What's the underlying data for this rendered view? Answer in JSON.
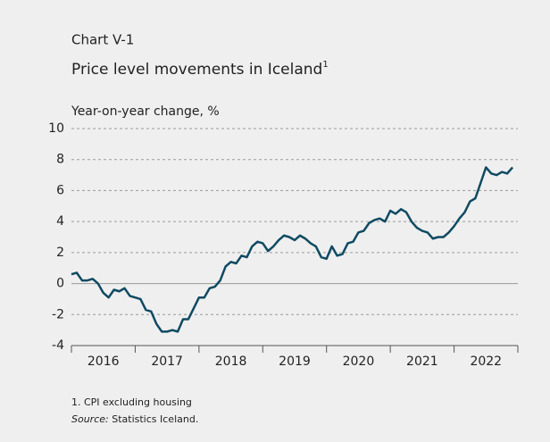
{
  "chart_data": {
    "type": "line",
    "chart_number": "Chart V-1",
    "title": "Price level movements in Iceland",
    "title_note": "1",
    "y_label": "Year-on-year change, %",
    "footnote": "1. CPI excluding housing",
    "source_label": "Source:",
    "source": "Statistics Iceland.",
    "x": [
      2016,
      2016.083,
      2016.167,
      2016.25,
      2016.333,
      2016.417,
      2016.5,
      2016.583,
      2016.667,
      2016.75,
      2016.833,
      2016.917,
      2017,
      2017.083,
      2017.167,
      2017.25,
      2017.333,
      2017.417,
      2017.5,
      2017.583,
      2017.667,
      2017.75,
      2017.833,
      2017.917,
      2018,
      2018.083,
      2018.167,
      2018.25,
      2018.333,
      2018.417,
      2018.5,
      2018.583,
      2018.667,
      2018.75,
      2018.833,
      2018.917,
      2019,
      2019.083,
      2019.167,
      2019.25,
      2019.333,
      2019.417,
      2019.5,
      2019.583,
      2019.667,
      2019.75,
      2019.833,
      2019.917,
      2020,
      2020.083,
      2020.167,
      2020.25,
      2020.333,
      2020.417,
      2020.5,
      2020.583,
      2020.667,
      2020.75,
      2020.833,
      2020.917,
      2021,
      2021.083,
      2021.167,
      2021.25,
      2021.333,
      2021.417,
      2021.5,
      2021.583,
      2021.667,
      2021.75,
      2021.833,
      2021.917,
      2022,
      2022.083,
      2022.167,
      2022.25,
      2022.333,
      2022.417,
      2022.5,
      2022.583,
      2022.667,
      2022.75,
      2022.833,
      2022.917
    ],
    "series": [
      {
        "color": "#0f4a62",
        "values": [
          0.6,
          0.7,
          0.2,
          0.2,
          0.3,
          0.0,
          -0.6,
          -0.9,
          -0.4,
          -0.5,
          -0.3,
          -0.8,
          -0.9,
          -1.0,
          -1.7,
          -1.8,
          -2.6,
          -3.1,
          -3.1,
          -3.0,
          -3.1,
          -2.3,
          -2.3,
          -1.6,
          -0.9,
          -0.9,
          -0.3,
          -0.2,
          0.2,
          1.1,
          1.4,
          1.3,
          1.8,
          1.7,
          2.4,
          2.7,
          2.6,
          2.1,
          2.4,
          2.8,
          3.1,
          3.0,
          2.8,
          3.1,
          2.9,
          2.6,
          2.4,
          1.7,
          1.6,
          2.4,
          1.8,
          1.9,
          2.6,
          2.7,
          3.3,
          3.4,
          3.9,
          4.1,
          4.2,
          4.0,
          4.7,
          4.5,
          4.8,
          4.6,
          4.0,
          3.6,
          3.4,
          3.3,
          2.9,
          3.0,
          3.0,
          3.3,
          3.7,
          4.2,
          4.6,
          5.3,
          5.5,
          6.5,
          7.5,
          7.1,
          7.0,
          7.2,
          7.1,
          7.5
        ]
      }
    ],
    "xlim": [
      2016,
      2023
    ],
    "xticks": [
      {
        "value": 2016.5,
        "label": "2016"
      },
      {
        "value": 2017.5,
        "label": "2017"
      },
      {
        "value": 2018.5,
        "label": "2018"
      },
      {
        "value": 2019.5,
        "label": "2019"
      },
      {
        "value": 2020.5,
        "label": "2020"
      },
      {
        "value": 2021.5,
        "label": "2021"
      },
      {
        "value": 2022.5,
        "label": "2022"
      }
    ],
    "ylim": [
      -4,
      10
    ],
    "yticks": [
      -4,
      -2,
      0,
      2,
      4,
      6,
      8,
      10
    ],
    "grid": true
  }
}
